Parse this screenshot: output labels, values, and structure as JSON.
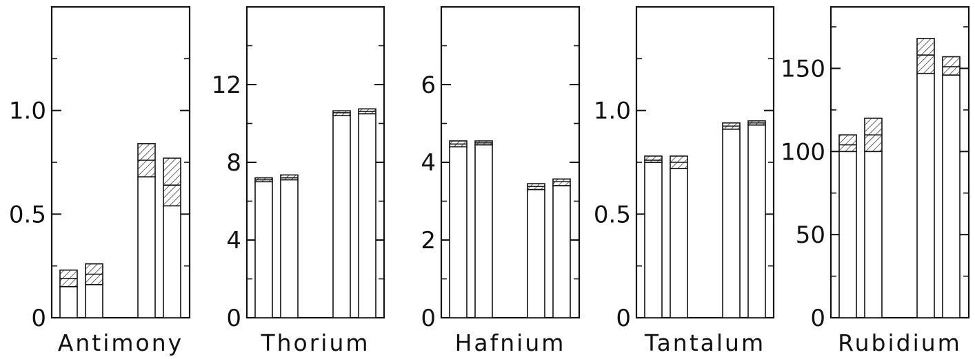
{
  "chart_data": [
    {
      "type": "bar",
      "title": "Antimony",
      "ylim": [
        0,
        1.5
      ],
      "yticks": [
        0,
        0.5,
        1.0
      ],
      "ytick_labels": [
        "0",
        "0.5",
        "1.0"
      ],
      "minor_ticks": [
        0.25,
        0.75,
        1.25
      ],
      "bars": [
        {
          "base": 0.15,
          "low": 0.15,
          "mid": 0.19,
          "high": 0.23
        },
        {
          "base": 0.16,
          "low": 0.16,
          "mid": 0.21,
          "high": 0.26
        },
        {
          "base": 0.68,
          "low": 0.68,
          "mid": 0.76,
          "high": 0.84
        },
        {
          "base": 0.54,
          "low": 0.54,
          "mid": 0.64,
          "high": 0.77
        }
      ]
    },
    {
      "type": "bar",
      "title": "Thorium",
      "ylim": [
        0,
        16
      ],
      "yticks": [
        0,
        4,
        8,
        12
      ],
      "ytick_labels": [
        "0",
        "4",
        "8",
        "12"
      ],
      "minor_ticks": [
        2,
        6,
        10,
        14
      ],
      "bars": [
        {
          "base": 7.0,
          "low": 7.0,
          "mid": 7.1,
          "high": 7.2
        },
        {
          "base": 7.1,
          "low": 7.1,
          "mid": 7.2,
          "high": 7.35
        },
        {
          "base": 10.4,
          "low": 10.4,
          "mid": 10.55,
          "high": 10.65
        },
        {
          "base": 10.5,
          "low": 10.5,
          "mid": 10.62,
          "high": 10.75
        }
      ]
    },
    {
      "type": "bar",
      "title": "Hafnium",
      "ylim": [
        0,
        8
      ],
      "yticks": [
        0,
        2,
        4,
        6
      ],
      "ytick_labels": [
        "0",
        "2",
        "4",
        "6"
      ],
      "minor_ticks": [
        1,
        3,
        5,
        7
      ],
      "bars": [
        {
          "base": 4.4,
          "low": 4.4,
          "mid": 4.47,
          "high": 4.55
        },
        {
          "base": 4.45,
          "low": 4.45,
          "mid": 4.5,
          "high": 4.55
        },
        {
          "base": 3.3,
          "low": 3.3,
          "mid": 3.38,
          "high": 3.45
        },
        {
          "base": 3.4,
          "low": 3.4,
          "mid": 3.5,
          "high": 3.57
        }
      ]
    },
    {
      "type": "bar",
      "title": "Tantalum",
      "ylim": [
        0,
        1.5
      ],
      "yticks": [
        0,
        0.5,
        1.0
      ],
      "ytick_labels": [
        "0",
        "0.5",
        "1.0"
      ],
      "minor_ticks": [
        0.25,
        0.75,
        1.25
      ],
      "bars": [
        {
          "base": 0.75,
          "low": 0.75,
          "mid": 0.76,
          "high": 0.78
        },
        {
          "base": 0.72,
          "low": 0.72,
          "mid": 0.75,
          "high": 0.78
        },
        {
          "base": 0.91,
          "low": 0.91,
          "mid": 0.925,
          "high": 0.94
        },
        {
          "base": 0.93,
          "low": 0.93,
          "mid": 0.94,
          "high": 0.95
        }
      ]
    },
    {
      "type": "bar",
      "title": "Rubidium",
      "ylim": [
        0,
        187
      ],
      "yticks": [
        0,
        50,
        100,
        150
      ],
      "ytick_labels": [
        "0",
        "50",
        "100",
        "150"
      ],
      "minor_ticks": [
        25,
        75,
        125,
        175
      ],
      "bars": [
        {
          "base": 100,
          "low": 100,
          "mid": 104,
          "high": 110
        },
        {
          "base": 100,
          "low": 100,
          "mid": 110,
          "high": 120
        },
        {
          "base": 147,
          "low": 147,
          "mid": 158,
          "high": 168
        },
        {
          "base": 146,
          "low": 146,
          "mid": 151,
          "high": 157
        }
      ]
    }
  ]
}
